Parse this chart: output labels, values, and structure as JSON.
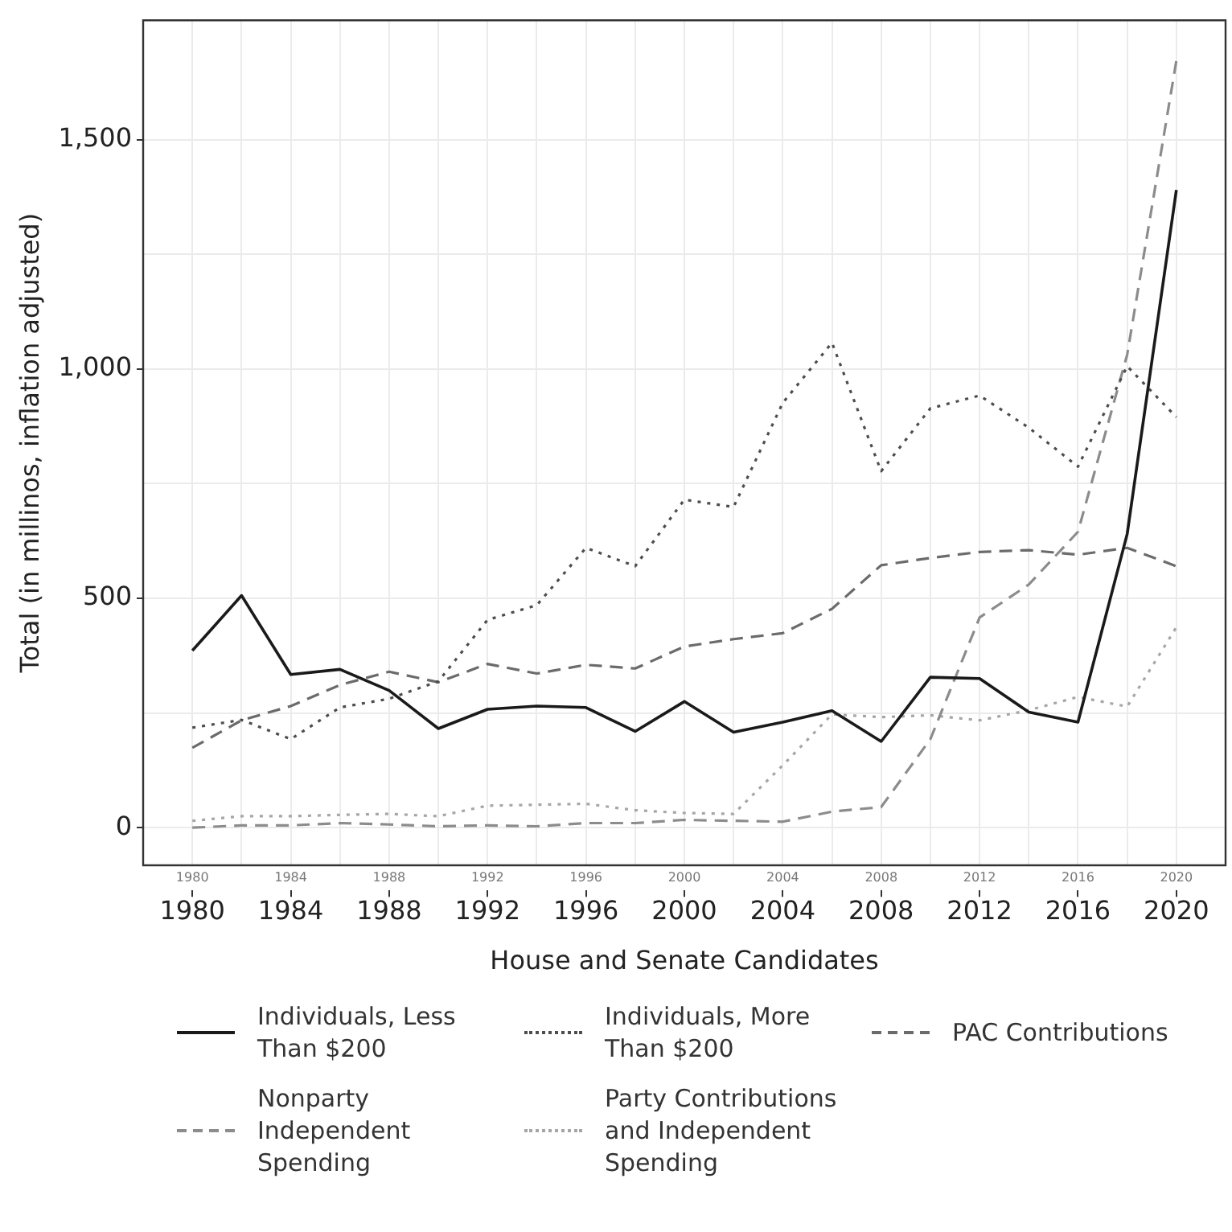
{
  "chart_data": {
    "type": "line",
    "xlabel": "House and Senate Candidates",
    "ylabel": "Total (in millinos, inflation adjusted)",
    "x": [
      1980,
      1982,
      1984,
      1986,
      1988,
      1990,
      1992,
      1994,
      1996,
      1998,
      2000,
      2002,
      2004,
      2006,
      2008,
      2010,
      2012,
      2014,
      2016,
      2018,
      2020
    ],
    "series": [
      {
        "name": "Individuals, Less Than $200",
        "color": "#1a1a1a",
        "line_style": "solid",
        "values": [
          386,
          506,
          334,
          345,
          299,
          216,
          258,
          265,
          262,
          210,
          275,
          208,
          230,
          255,
          188,
          328,
          325,
          252,
          230,
          640,
          1390
        ]
      },
      {
        "name": "Individuals, More Than $200",
        "color": "#4d4d4d",
        "line_style": "dotted",
        "values": [
          218,
          235,
          193,
          262,
          281,
          319,
          453,
          485,
          610,
          570,
          715,
          699,
          926,
          1057,
          777,
          914,
          942,
          872,
          787,
          1006,
          895
        ]
      },
      {
        "name": "PAC Contributions",
        "color": "#6b6b6b",
        "line_style": "dashed",
        "values": [
          174,
          234,
          265,
          311,
          340,
          317,
          357,
          336,
          355,
          347,
          395,
          411,
          424,
          477,
          572,
          588,
          601,
          605,
          595,
          610,
          570
        ]
      },
      {
        "name": "Nonparty Independent Spending",
        "color": "#8c8c8c",
        "line_style": "dashed",
        "values": [
          0,
          5,
          5,
          10,
          7,
          3,
          5,
          3,
          10,
          10,
          17,
          15,
          13,
          35,
          45,
          193,
          458,
          530,
          645,
          1031,
          1672
        ]
      },
      {
        "name": "Party Contributions and Independent Spending",
        "color": "#a6a6a6",
        "line_style": "dotted",
        "values": [
          15,
          25,
          25,
          28,
          30,
          25,
          48,
          50,
          52,
          38,
          32,
          30,
          136,
          247,
          241,
          245,
          234,
          256,
          285,
          264,
          437
        ]
      }
    ],
    "xlim": [
      1978,
      2022
    ],
    "xticks": [
      1980,
      {
        "value": 1982,
        "label": null
      },
      1984,
      {
        "value": 1986,
        "label": null
      },
      1988,
      {
        "value": 1990,
        "label": null
      },
      1992,
      {
        "value": 1994,
        "label": null
      },
      1996,
      {
        "value": 1998,
        "label": null
      },
      2000,
      {
        "value": 2002,
        "label": null
      },
      2004,
      {
        "value": 2006,
        "label": null
      },
      2008,
      {
        "value": 2010,
        "label": null
      },
      2012,
      {
        "value": 2014,
        "label": null
      },
      2016,
      {
        "value": 2018,
        "label": null
      },
      2020
    ],
    "x2lim": [
      1978,
      2022
    ],
    "x2ticks": [
      1980,
      1984,
      1988,
      1992,
      1996,
      2000,
      2004,
      2008,
      2012,
      2016,
      2020
    ],
    "ylim": [
      -82,
      1760
    ],
    "yticks": [
      {
        "value": 0,
        "label": "0"
      },
      {
        "value": 250,
        "label": null
      },
      {
        "value": 500,
        "label": "500"
      },
      {
        "value": 750,
        "label": null
      },
      {
        "value": 1000,
        "label": "1,000"
      },
      {
        "value": 1250,
        "label": null
      },
      {
        "value": 1500,
        "label": "1,500"
      }
    ],
    "grid": true,
    "legend": "bottom",
    "marker": "none"
  }
}
